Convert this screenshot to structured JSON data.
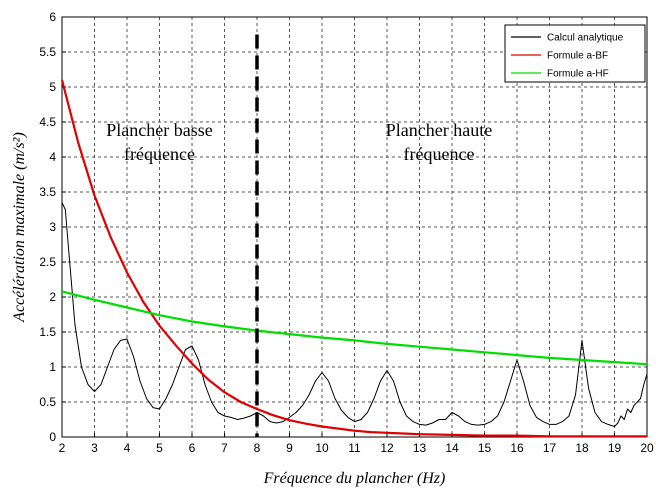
{
  "chart_data": {
    "type": "line",
    "xlabel": "Fréquence du plancher (Hz)",
    "ylabel": "Accélération maximale (m/s²)",
    "xlim": [
      2,
      20
    ],
    "ylim": [
      0,
      6
    ],
    "x_ticks": [
      2,
      3,
      4,
      5,
      6,
      7,
      8,
      9,
      10,
      11,
      12,
      13,
      14,
      15,
      16,
      17,
      18,
      19,
      20
    ],
    "y_ticks": [
      0,
      0.5,
      1,
      1.5,
      2,
      2.5,
      3,
      3.5,
      4,
      4.5,
      5,
      5.5,
      6
    ],
    "grid": true,
    "legend_position": "top-right",
    "divider_x": 8,
    "annotations": [
      {
        "lines": [
          "Plancher basse",
          "fréquence"
        ],
        "x": 5.0,
        "y": 4.3
      },
      {
        "lines": [
          "Plancher haute",
          "fréquence"
        ],
        "x": 13.6,
        "y": 4.3
      }
    ],
    "series": [
      {
        "name": "Calcul analytique",
        "color": "#000000",
        "x": [
          2.0,
          2.1,
          2.2,
          2.4,
          2.6,
          2.8,
          3.0,
          3.2,
          3.4,
          3.6,
          3.8,
          4.0,
          4.2,
          4.4,
          4.6,
          4.8,
          5.0,
          5.2,
          5.4,
          5.6,
          5.8,
          6.0,
          6.2,
          6.4,
          6.6,
          6.8,
          7.0,
          7.2,
          7.4,
          7.6,
          7.8,
          8.0,
          8.2,
          8.4,
          8.6,
          8.8,
          9.0,
          9.2,
          9.4,
          9.6,
          9.8,
          10.0,
          10.2,
          10.4,
          10.6,
          10.8,
          11.0,
          11.2,
          11.4,
          11.6,
          11.8,
          12.0,
          12.2,
          12.4,
          12.6,
          12.8,
          13.0,
          13.2,
          13.4,
          13.6,
          13.8,
          14.0,
          14.2,
          14.4,
          14.6,
          14.8,
          15.0,
          15.2,
          15.4,
          15.6,
          15.8,
          16.0,
          16.2,
          16.4,
          16.6,
          16.8,
          17.0,
          17.2,
          17.4,
          17.6,
          17.8,
          18.0,
          18.2,
          18.4,
          18.6,
          18.8,
          19.0,
          19.1,
          19.2,
          19.3,
          19.4,
          19.5,
          19.6,
          19.7,
          19.8,
          19.9,
          20.0
        ],
        "values": [
          3.35,
          3.25,
          2.7,
          1.6,
          1.0,
          0.75,
          0.65,
          0.75,
          1.0,
          1.25,
          1.38,
          1.4,
          1.15,
          0.8,
          0.55,
          0.42,
          0.4,
          0.55,
          0.75,
          1.0,
          1.25,
          1.3,
          1.1,
          0.75,
          0.5,
          0.35,
          0.3,
          0.28,
          0.25,
          0.27,
          0.3,
          0.35,
          0.3,
          0.22,
          0.2,
          0.22,
          0.28,
          0.35,
          0.45,
          0.6,
          0.8,
          0.92,
          0.8,
          0.55,
          0.38,
          0.28,
          0.22,
          0.25,
          0.35,
          0.55,
          0.8,
          0.95,
          0.8,
          0.5,
          0.3,
          0.22,
          0.18,
          0.17,
          0.2,
          0.25,
          0.25,
          0.35,
          0.3,
          0.22,
          0.18,
          0.17,
          0.18,
          0.22,
          0.3,
          0.5,
          0.8,
          1.1,
          0.8,
          0.45,
          0.28,
          0.22,
          0.18,
          0.18,
          0.22,
          0.3,
          0.6,
          1.38,
          0.7,
          0.35,
          0.22,
          0.18,
          0.15,
          0.2,
          0.3,
          0.25,
          0.4,
          0.35,
          0.45,
          0.5,
          0.55,
          0.75,
          0.9
        ]
      },
      {
        "name": "Formule a-BF",
        "color": "#e00000",
        "x": [
          2.0,
          2.5,
          3.0,
          3.5,
          4.0,
          4.5,
          5.0,
          5.5,
          6.0,
          6.5,
          7.0,
          7.5,
          8.0,
          8.5,
          9.0,
          9.5,
          10.0,
          10.5,
          11.0,
          11.5,
          12.0,
          12.5,
          13.0,
          14.0,
          15.0,
          16.0,
          17.0,
          18.0,
          19.0,
          20.0
        ],
        "values": [
          5.1,
          4.2,
          3.45,
          2.85,
          2.35,
          1.93,
          1.59,
          1.31,
          1.05,
          0.82,
          0.64,
          0.5,
          0.4,
          0.31,
          0.24,
          0.19,
          0.15,
          0.12,
          0.09,
          0.07,
          0.06,
          0.05,
          0.04,
          0.03,
          0.02,
          0.02,
          0.01,
          0.01,
          0.01,
          0.01
        ]
      },
      {
        "name": "Formule a-HF",
        "color": "#00dd00",
        "x": [
          2.0,
          3.0,
          4.0,
          5.0,
          6.0,
          7.0,
          8.0,
          9.0,
          10.0,
          11.0,
          12.0,
          13.0,
          14.0,
          15.0,
          16.0,
          17.0,
          18.0,
          19.0,
          20.0
        ],
        "values": [
          2.08,
          1.96,
          1.85,
          1.74,
          1.65,
          1.58,
          1.52,
          1.47,
          1.42,
          1.38,
          1.33,
          1.29,
          1.25,
          1.21,
          1.17,
          1.13,
          1.1,
          1.07,
          1.04
        ]
      }
    ]
  }
}
